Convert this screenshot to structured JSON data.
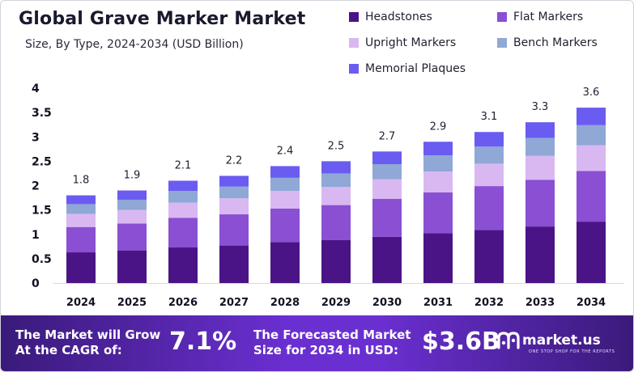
{
  "title": "Global Grave Marker Market",
  "subtitle": "Size, By Type, 2024-2034 (USD Billion)",
  "colors": {
    "headstones": "#4a1486",
    "flat_markers": "#8a4fd3",
    "upright_markers": "#d9b8f2",
    "bench_markers": "#8fa8d6",
    "memorial_plaques": "#6a5cf0"
  },
  "chart_data": {
    "type": "bar",
    "stacked": true,
    "title": "Global Grave Marker Market",
    "subtitle": "Size, By Type, 2024-2034 (USD Billion)",
    "xlabel": "",
    "ylabel": "",
    "ylim": [
      0,
      4
    ],
    "yticks": [
      "0",
      "0.5",
      "1",
      "1.5",
      "2",
      "2.5",
      "3",
      "3.5",
      "4"
    ],
    "grid": false,
    "legend_position": "top-right",
    "categories": [
      "2024",
      "2025",
      "2026",
      "2027",
      "2028",
      "2029",
      "2030",
      "2031",
      "2032",
      "2033",
      "2034"
    ],
    "totals": [
      1.8,
      1.9,
      2.1,
      2.2,
      2.4,
      2.5,
      2.7,
      2.9,
      3.1,
      3.3,
      3.6
    ],
    "total_labels": [
      "1.8",
      "1.9",
      "2.1",
      "2.2",
      "2.4",
      "2.5",
      "2.7",
      "2.9",
      "3.1",
      "3.3",
      "3.6"
    ],
    "series": [
      {
        "name": "Headstones",
        "color_key": "headstones",
        "values": [
          0.63,
          0.67,
          0.73,
          0.77,
          0.84,
          0.88,
          0.95,
          1.02,
          1.09,
          1.16,
          1.26
        ]
      },
      {
        "name": "Flat Markers",
        "color_key": "flat_markers",
        "values": [
          0.52,
          0.55,
          0.61,
          0.64,
          0.69,
          0.72,
          0.78,
          0.84,
          0.9,
          0.96,
          1.04
        ]
      },
      {
        "name": "Upright Markers",
        "color_key": "upright_markers",
        "values": [
          0.27,
          0.28,
          0.31,
          0.33,
          0.36,
          0.37,
          0.4,
          0.43,
          0.46,
          0.49,
          0.53
        ]
      },
      {
        "name": "Bench Markers",
        "color_key": "bench_markers",
        "values": [
          0.2,
          0.21,
          0.24,
          0.24,
          0.27,
          0.28,
          0.31,
          0.33,
          0.35,
          0.37,
          0.41
        ]
      },
      {
        "name": "Memorial Plaques",
        "color_key": "memorial_plaques",
        "values": [
          0.18,
          0.19,
          0.21,
          0.22,
          0.24,
          0.25,
          0.26,
          0.28,
          0.3,
          0.32,
          0.36
        ]
      }
    ]
  },
  "footer": {
    "cagr_label_line1": "The Market will Grow",
    "cagr_label_line2": "At the CAGR of:",
    "cagr_value": "7.1%",
    "forecast_label_line1": "The Forecasted Market",
    "forecast_label_line2": "Size for 2034 in USD:",
    "forecast_value": "$3.6B",
    "brand_name": "market.us",
    "brand_tagline": "ONE STOP SHOP FOR THE REPORTS"
  }
}
